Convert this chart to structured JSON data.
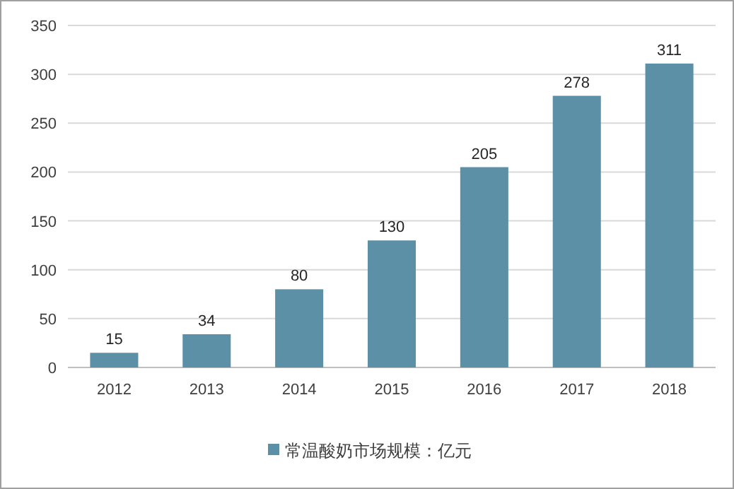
{
  "chart_data": {
    "type": "bar",
    "categories": [
      "2012",
      "2013",
      "2014",
      "2015",
      "2016",
      "2017",
      "2018"
    ],
    "series": [
      {
        "name": "常温酸奶市场规模：亿元",
        "color": "#5b90a6",
        "values": [
          15,
          34,
          80,
          130,
          205,
          278,
          311
        ]
      }
    ],
    "ylim": [
      0,
      350
    ],
    "yticks": [
      0,
      50,
      100,
      150,
      200,
      250,
      300,
      350
    ],
    "grid": "y",
    "legend": "bottom",
    "data_labels": true
  }
}
